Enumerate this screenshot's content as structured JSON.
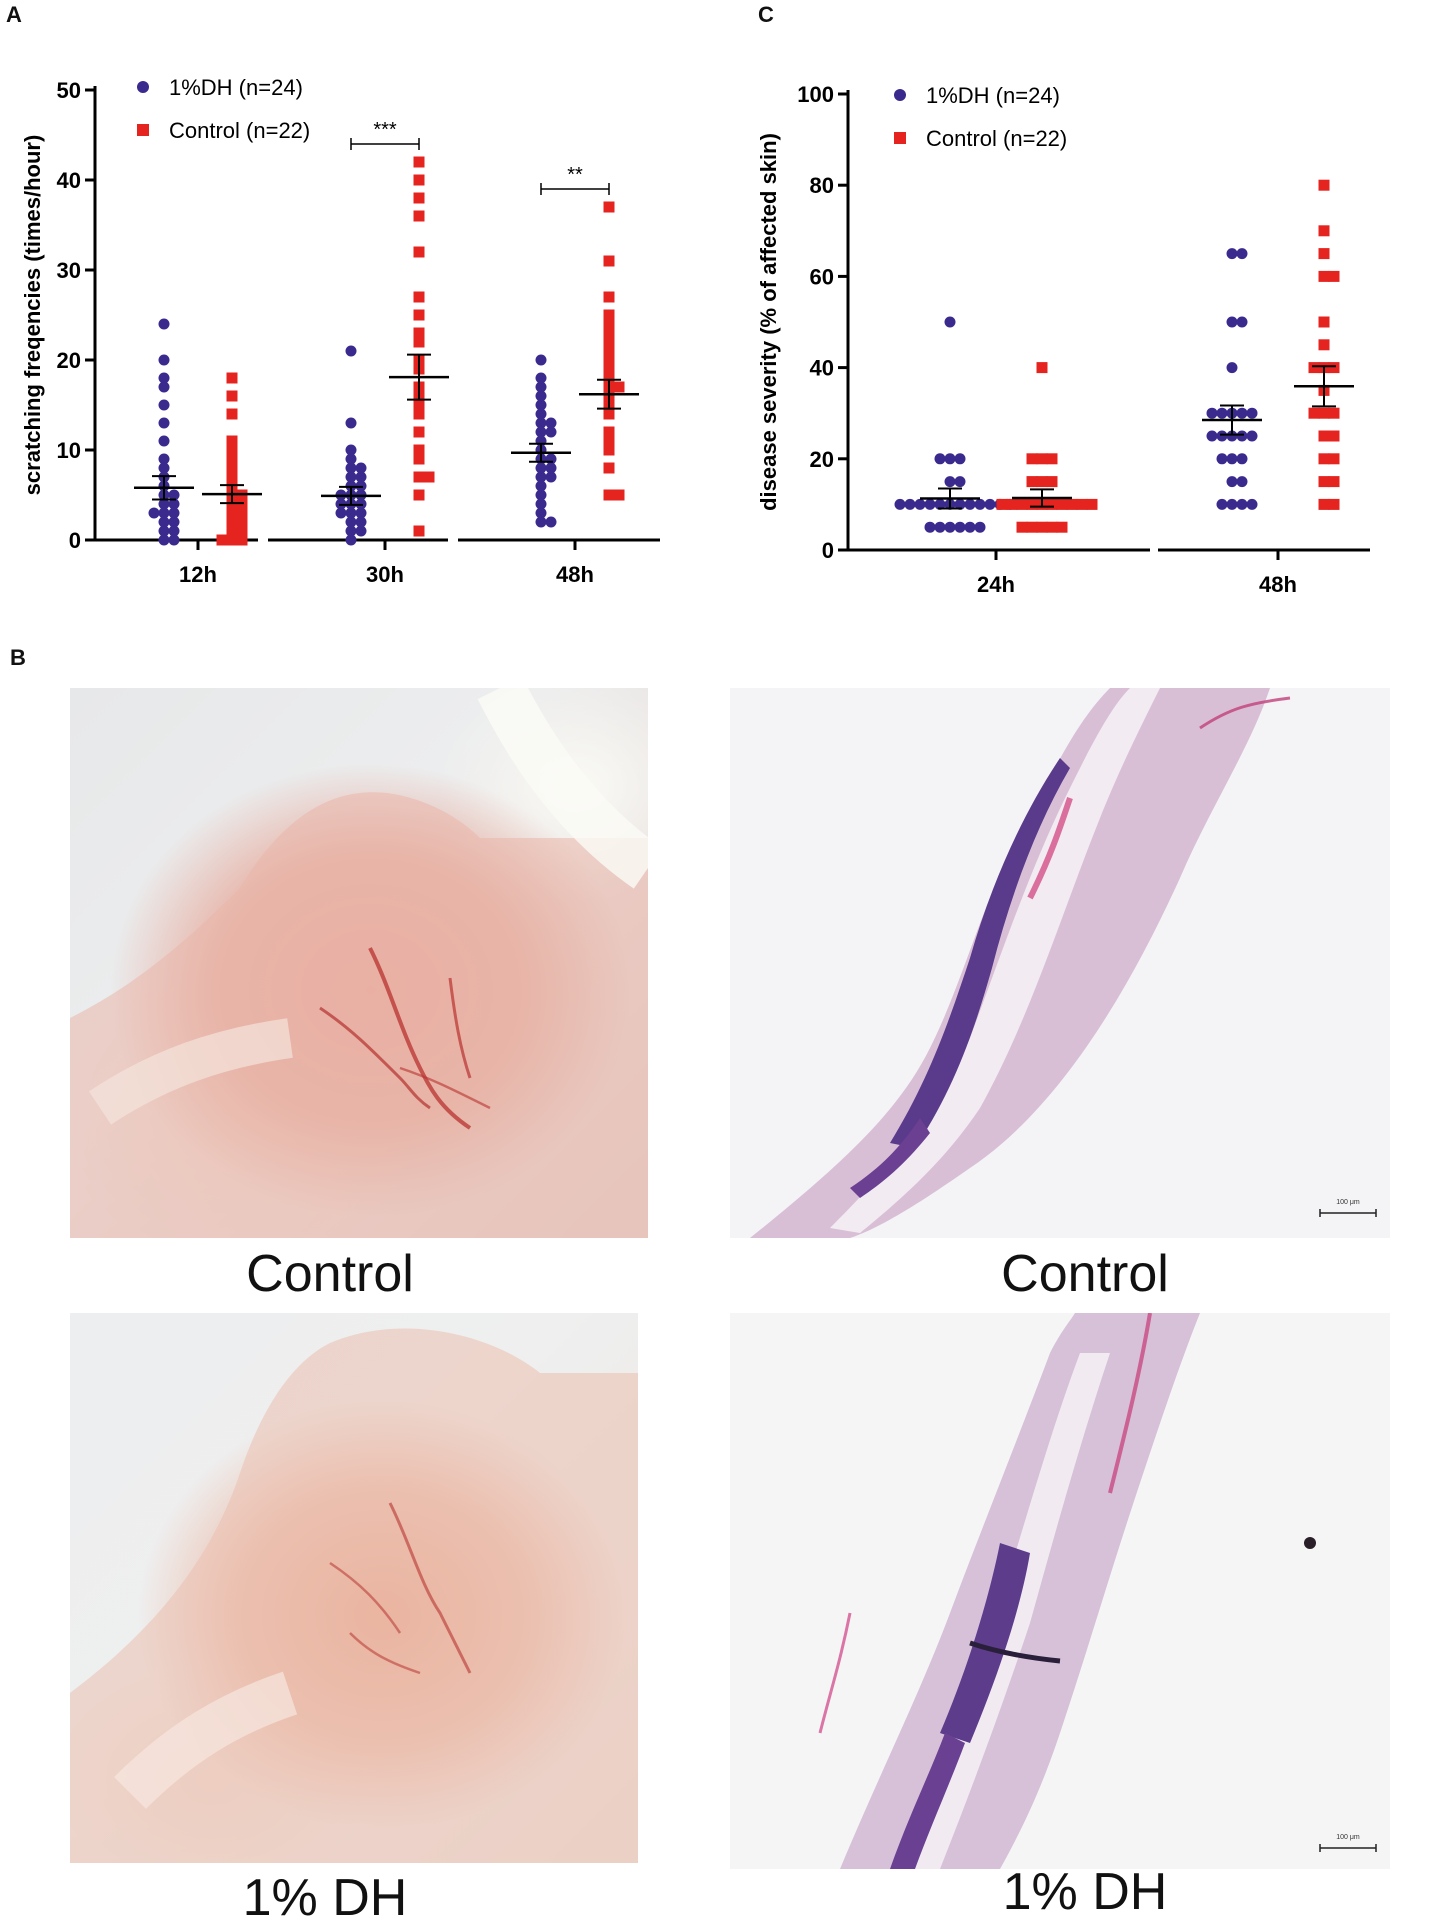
{
  "panels": {
    "a": "A",
    "b": "B",
    "c": "C"
  },
  "colors": {
    "dh": "#3b2a8e",
    "control": "#e52420"
  },
  "chart_data": [
    {
      "type": "scatter",
      "ylabel": "scratching freqencies (times/hour)",
      "categories": [
        "12h",
        "30h",
        "48h"
      ],
      "ylim": [
        0,
        50
      ],
      "yticks": [
        0,
        10,
        20,
        30,
        40,
        50
      ],
      "legend_position": "top-left",
      "series": [
        {
          "name": "1%DH (n=24)",
          "marker": "circle",
          "mean": [
            5.8,
            4.9,
            9.7
          ],
          "sem": [
            1.3,
            1.0,
            1.0
          ],
          "values": [
            [
              24,
              20,
              18,
              17,
              15,
              13,
              11,
              9,
              8,
              7,
              6,
              5,
              5,
              4,
              4,
              3,
              3,
              3,
              2,
              2,
              1,
              1,
              0,
              0
            ],
            [
              21,
              13,
              10,
              9,
              8,
              8,
              7,
              7,
              6,
              6,
              5,
              5,
              5,
              4,
              4,
              4,
              3,
              3,
              3,
              2,
              2,
              1,
              1,
              0
            ],
            [
              20,
              18,
              17,
              16,
              15,
              14,
              13,
              13,
              12,
              12,
              11,
              10,
              9,
              9,
              8,
              8,
              7,
              7,
              6,
              5,
              4,
              3,
              2,
              2
            ]
          ]
        },
        {
          "name": "Control (n=22)",
          "marker": "square",
          "mean": [
            5.1,
            18.1,
            16.2
          ],
          "sem": [
            1.0,
            2.5,
            1.6
          ],
          "values": [
            [
              18,
              16,
              14,
              11,
              10,
              9,
              8,
              7,
              6,
              5,
              5,
              4,
              4,
              3,
              3,
              2,
              2,
              1,
              1,
              0,
              0,
              0
            ],
            [
              42,
              40,
              38,
              36,
              32,
              27,
              25,
              23,
              22,
              20,
              19,
              17,
              16,
              15,
              14,
              12,
              10,
              9,
              7,
              7,
              5,
              1
            ],
            [
              37,
              31,
              27,
              25,
              24,
              23,
              22,
              21,
              20,
              19,
              18,
              17,
              17,
              16,
              15,
              14,
              12,
              11,
              10,
              8,
              5,
              5
            ]
          ]
        }
      ],
      "annotations": [
        {
          "text": "***",
          "category": "30h",
          "y": 44
        },
        {
          "text": "**",
          "category": "48h",
          "y": 39
        }
      ]
    },
    {
      "type": "scatter",
      "ylabel": "disease severity (% of affected skin)",
      "categories": [
        "24h",
        "48h"
      ],
      "ylim": [
        0,
        100
      ],
      "yticks": [
        0,
        20,
        40,
        60,
        80,
        100
      ],
      "legend_position": "top-left",
      "series": [
        {
          "name": "1%DH (n=24)",
          "marker": "circle",
          "mean": [
            11.3,
            28.5
          ],
          "sem": [
            2.2,
            3.2
          ],
          "values": [
            [
              50,
              20,
              20,
              20,
              15,
              15,
              10,
              10,
              10,
              10,
              10,
              10,
              10,
              10,
              10,
              10,
              10,
              10,
              5,
              5,
              5,
              5,
              5,
              5
            ],
            [
              65,
              65,
              50,
              50,
              40,
              30,
              30,
              30,
              30,
              30,
              25,
              25,
              25,
              25,
              25,
              20,
              20,
              20,
              15,
              15,
              10,
              10,
              10,
              10
            ]
          ]
        },
        {
          "name": "Control (n=22)",
          "marker": "square",
          "mean": [
            11.4,
            35.9
          ],
          "sem": [
            1.9,
            4.4
          ],
          "values": [
            [
              40,
              20,
              20,
              20,
              15,
              15,
              15,
              10,
              10,
              10,
              10,
              10,
              10,
              10,
              10,
              10,
              10,
              5,
              5,
              5,
              5,
              5
            ],
            [
              80,
              70,
              65,
              60,
              60,
              50,
              45,
              40,
              40,
              40,
              35,
              30,
              30,
              30,
              25,
              25,
              20,
              20,
              15,
              15,
              10,
              10
            ]
          ]
        }
      ]
    }
  ],
  "images": [
    {
      "caption": "Control",
      "subject": "ear-photo"
    },
    {
      "caption": "Control",
      "subject": "histology",
      "scale": "100 μm"
    },
    {
      "caption": "1% DH",
      "subject": "ear-photo"
    },
    {
      "caption": "1% DH",
      "subject": "histology",
      "scale": "100 μm"
    }
  ]
}
